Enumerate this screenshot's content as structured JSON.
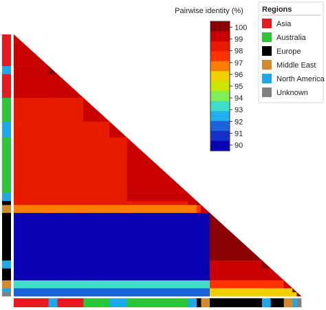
{
  "chart_data": {
    "type": "heatmap",
    "title": "",
    "colorbar": {
      "label": "Pairwise identity (%)",
      "ticks": [
        100,
        99,
        98,
        97,
        96,
        95,
        94,
        93,
        92,
        91,
        90
      ],
      "range": [
        89.5,
        100.5
      ],
      "colors": [
        "#8B0000",
        "#C80000",
        "#E81A00",
        "#FF3300",
        "#FF8000",
        "#F2D000",
        "#CCE600",
        "#7FEF55",
        "#40DDC8",
        "#22B0F0",
        "#1B63D8",
        "#1530C8",
        "#0A00B4"
      ]
    },
    "legend": {
      "title": "Regions",
      "position": "top-right",
      "entries": [
        {
          "label": "Asia",
          "color": "#E8191F"
        },
        {
          "label": "Australia",
          "color": "#2EC437"
        },
        {
          "label": "Europe",
          "color": "#000000"
        },
        {
          "label": "Middle East",
          "color": "#D28A2F"
        },
        {
          "label": "North America",
          "color": "#1FA8E8"
        },
        {
          "label": "Unknown",
          "color": "#808080"
        }
      ]
    },
    "groups": [
      {
        "region": "Asia",
        "size": 8
      },
      {
        "region": "North America",
        "size": 2
      },
      {
        "region": "Asia",
        "size": 6
      },
      {
        "region": "Australia",
        "size": 6
      },
      {
        "region": "North America",
        "size": 4
      },
      {
        "region": "Australia",
        "size": 14
      },
      {
        "region": "North America",
        "size": 2
      },
      {
        "region": "Europe",
        "size": 1
      },
      {
        "region": "Middle East",
        "size": 2
      },
      {
        "region": "Europe",
        "size": 12
      },
      {
        "region": "North America",
        "size": 2
      },
      {
        "region": "Europe",
        "size": 3
      },
      {
        "region": "Middle East",
        "size": 2
      },
      {
        "region": "North America",
        "size": 1
      },
      {
        "region": "Unknown",
        "size": 1
      }
    ],
    "block_identity": [
      [
        99.6,
        99.2,
        99.0,
        98.7,
        98.6,
        98.6,
        98.6,
        98.6,
        96.9,
        90.0,
        89.9,
        89.9,
        93.0,
        92.0,
        92.0
      ],
      [
        99.2,
        100,
        99.3,
        98.8,
        98.7,
        98.6,
        98.6,
        98.6,
        96.9,
        90.0,
        89.9,
        89.9,
        93.0,
        92.0,
        92.0
      ],
      [
        99.0,
        99.3,
        99.5,
        98.8,
        98.7,
        98.6,
        98.6,
        98.6,
        96.9,
        90.0,
        89.9,
        89.9,
        93.0,
        92.0,
        92.0
      ],
      [
        98.7,
        98.8,
        98.8,
        99.2,
        98.8,
        98.7,
        98.6,
        98.6,
        96.9,
        90.0,
        89.9,
        89.9,
        93.0,
        92.0,
        92.0
      ],
      [
        98.6,
        98.7,
        98.7,
        98.8,
        99.3,
        98.8,
        98.7,
        98.6,
        96.9,
        90.0,
        89.9,
        89.9,
        93.0,
        92.0,
        92.0
      ],
      [
        98.6,
        98.6,
        98.6,
        98.7,
        98.8,
        99.5,
        99.0,
        98.8,
        96.9,
        90.0,
        89.9,
        89.9,
        93.0,
        92.0,
        92.0
      ],
      [
        98.6,
        98.6,
        98.6,
        98.6,
        98.7,
        99.0,
        99.6,
        99.2,
        96.9,
        90.0,
        89.9,
        89.9,
        93.0,
        92.0,
        92.0
      ],
      [
        98.6,
        98.6,
        98.6,
        98.6,
        98.6,
        98.8,
        99.2,
        100,
        97.2,
        90.0,
        89.9,
        89.9,
        93.0,
        92.0,
        92.0
      ],
      [
        96.9,
        96.9,
        96.9,
        96.9,
        96.9,
        96.9,
        96.9,
        97.2,
        99.6,
        90.3,
        90.2,
        90.2,
        93.0,
        92.0,
        92.0
      ],
      [
        90.0,
        90.0,
        90.0,
        90.0,
        90.0,
        90.0,
        90.0,
        90.0,
        90.3,
        100,
        99.6,
        98.9,
        97.8,
        96.0,
        95.5
      ],
      [
        89.9,
        89.9,
        89.9,
        89.9,
        89.9,
        89.9,
        89.9,
        89.9,
        90.2,
        99.6,
        100,
        98.9,
        97.8,
        96.0,
        95.5
      ],
      [
        89.9,
        89.9,
        89.9,
        89.9,
        89.9,
        89.9,
        89.9,
        89.9,
        90.2,
        98.9,
        98.9,
        99.6,
        97.5,
        96.0,
        95.5
      ],
      [
        93.0,
        93.0,
        93.0,
        93.0,
        93.0,
        93.0,
        93.0,
        93.0,
        93.0,
        97.8,
        97.8,
        97.5,
        99.6,
        96.0,
        95.5
      ],
      [
        92.0,
        92.0,
        92.0,
        92.0,
        92.0,
        92.0,
        92.0,
        92.0,
        92.0,
        96.0,
        96.0,
        96.0,
        96.0,
        100,
        95.5
      ],
      [
        92.0,
        92.0,
        92.0,
        92.0,
        92.0,
        92.0,
        92.0,
        92.0,
        92.0,
        95.5,
        95.5,
        95.5,
        95.5,
        95.5,
        100
      ]
    ]
  }
}
